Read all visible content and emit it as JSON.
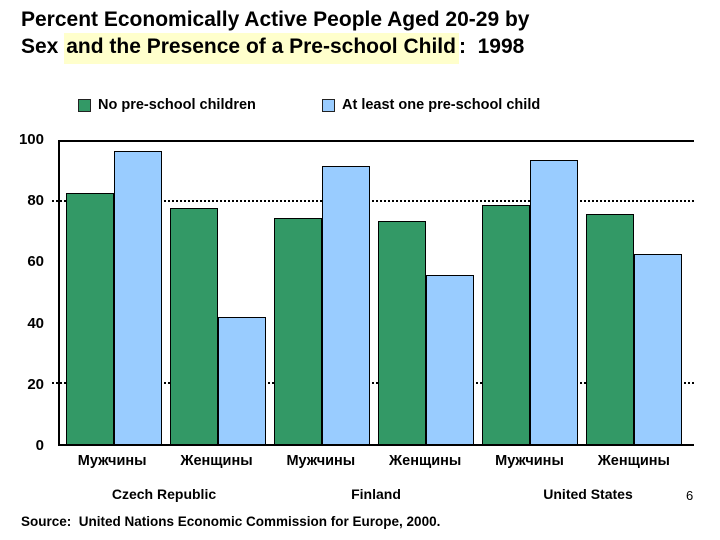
{
  "slide": {
    "title": {
      "line1": "Percent Economically Active People Aged 20-29 by",
      "line2_prefix": "Sex ",
      "line2_highlighted": "and the Presence of a Pre-school Child",
      "line2_suffix": ":  1998",
      "highlight_color": "#FFFFCC"
    },
    "page_number": "6",
    "source": "Source:  United Nations Economic Commission for Europe, 2000."
  },
  "chart_data": {
    "type": "bar",
    "title": "Percent Economically Active People Aged 20-29 by Sex and the Presence of a Pre-school Child: 1998",
    "categories": [
      "Мужчины",
      "Женщины",
      "Мужчины",
      "Женщины",
      "Мужчины",
      "Женщины"
    ],
    "group_labels": [
      "Czech Republic",
      "Finland",
      "United States"
    ],
    "series": [
      {
        "name": "No pre-school children",
        "color": "#339966",
        "values": [
          83,
          78,
          75,
          74,
          79,
          76
        ]
      },
      {
        "name": "At least one pre-school child",
        "color": "#99CCFF",
        "values": [
          97,
          42,
          92,
          56,
          94,
          63
        ]
      }
    ],
    "xlabel": "",
    "ylabel": "",
    "ylim": [
      0,
      100
    ],
    "yticks": [
      0,
      20,
      40,
      60,
      80,
      100
    ],
    "gridlines": [
      20,
      80
    ],
    "grid_style": "dotted",
    "legend_position": "top",
    "bar_border_color": "#000000"
  }
}
